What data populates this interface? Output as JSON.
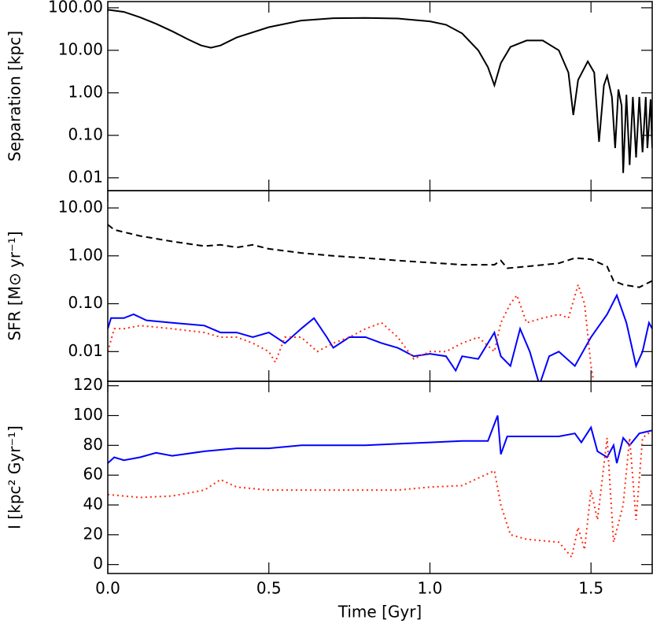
{
  "chart_data": [
    {
      "type": "line",
      "ylabel": "Separation [kpc]",
      "log": true,
      "xlim": [
        0,
        1.69
      ],
      "ylim": [
        0.005,
        140
      ],
      "yticks": [
        {
          "value": 100,
          "label": "100.00"
        },
        {
          "value": 10,
          "label": "10.00"
        },
        {
          "value": 1,
          "label": "1.00"
        },
        {
          "value": 0.1,
          "label": "0.10"
        },
        {
          "value": 0.01,
          "label": "0.01"
        }
      ],
      "series": [
        {
          "color": "#000000",
          "dash": "solid",
          "x": [
            0,
            0.05,
            0.1,
            0.15,
            0.2,
            0.25,
            0.29,
            0.32,
            0.35,
            0.4,
            0.5,
            0.6,
            0.7,
            0.8,
            0.9,
            1.0,
            1.05,
            1.1,
            1.15,
            1.18,
            1.2,
            1.22,
            1.25,
            1.3,
            1.35,
            1.4,
            1.43,
            1.445,
            1.46,
            1.49,
            1.51,
            1.525,
            1.54,
            1.55,
            1.565,
            1.575,
            1.585,
            1.595,
            1.6,
            1.61,
            1.62,
            1.63,
            1.64,
            1.65,
            1.66,
            1.67,
            1.675,
            1.685,
            1.69
          ],
          "values": [
            90,
            80,
            60,
            42,
            28,
            18,
            13,
            11.5,
            13,
            20,
            35,
            50,
            57,
            58,
            56,
            48,
            40,
            25,
            10,
            4,
            1.5,
            5,
            12,
            17,
            17,
            10,
            3,
            0.3,
            2,
            5.5,
            3,
            0.07,
            1.5,
            2.5,
            0.8,
            0.05,
            1.2,
            0.5,
            0.013,
            0.9,
            0.02,
            0.8,
            0.03,
            0.8,
            0.04,
            0.8,
            0.05,
            0.7,
            0.05
          ]
        }
      ]
    },
    {
      "type": "line",
      "ylabel": "SFR [M⊙ yr⁻¹]",
      "log": true,
      "xlim": [
        0,
        1.69
      ],
      "ylim": [
        0.0024,
        23
      ],
      "yticks": [
        {
          "value": 10,
          "label": "10.00"
        },
        {
          "value": 1,
          "label": "1.00"
        },
        {
          "value": 0.1,
          "label": "0.10"
        },
        {
          "value": 0.01,
          "label": "0.01"
        }
      ],
      "series": [
        {
          "color": "#000000",
          "dash": "dashed",
          "x": [
            0,
            0.02,
            0.1,
            0.2,
            0.3,
            0.35,
            0.4,
            0.45,
            0.5,
            0.6,
            0.7,
            0.8,
            0.9,
            1.0,
            1.1,
            1.2,
            1.22,
            1.24,
            1.3,
            1.4,
            1.45,
            1.5,
            1.55,
            1.57,
            1.6,
            1.65,
            1.69
          ],
          "values": [
            4.5,
            3.5,
            2.6,
            2,
            1.6,
            1.7,
            1.5,
            1.7,
            1.4,
            1.15,
            1.0,
            0.9,
            0.8,
            0.72,
            0.65,
            0.65,
            0.8,
            0.55,
            0.6,
            0.7,
            0.9,
            0.85,
            0.6,
            0.3,
            0.25,
            0.22,
            0.3
          ]
        },
        {
          "color": "#0000ff",
          "dash": "solid",
          "x": [
            0,
            0.01,
            0.05,
            0.08,
            0.12,
            0.2,
            0.3,
            0.35,
            0.4,
            0.45,
            0.5,
            0.55,
            0.6,
            0.64,
            0.68,
            0.7,
            0.75,
            0.8,
            0.85,
            0.9,
            0.95,
            1.0,
            1.05,
            1.08,
            1.1,
            1.15,
            1.2,
            1.22,
            1.25,
            1.28,
            1.31,
            1.34,
            1.37,
            1.4,
            1.45,
            1.5,
            1.55,
            1.58,
            1.61,
            1.64,
            1.66,
            1.68,
            1.69
          ],
          "values": [
            0.03,
            0.05,
            0.05,
            0.06,
            0.045,
            0.04,
            0.035,
            0.025,
            0.025,
            0.02,
            0.025,
            0.015,
            0.03,
            0.05,
            0.02,
            0.012,
            0.02,
            0.02,
            0.015,
            0.012,
            0.008,
            0.009,
            0.008,
            0.004,
            0.008,
            0.007,
            0.025,
            0.008,
            0.005,
            0.03,
            0.01,
            0.002,
            0.008,
            0.01,
            0.005,
            0.02,
            0.06,
            0.15,
            0.04,
            0.005,
            0.01,
            0.04,
            0.03
          ]
        },
        {
          "color": "#ff2a10",
          "dash": "dotted",
          "x": [
            0,
            0.02,
            0.05,
            0.1,
            0.2,
            0.3,
            0.35,
            0.4,
            0.45,
            0.5,
            0.52,
            0.55,
            0.6,
            0.65,
            0.7,
            0.75,
            0.8,
            0.85,
            0.9,
            0.95,
            1.0,
            1.05,
            1.1,
            1.15,
            1.2,
            1.22,
            1.25,
            1.27,
            1.3,
            1.35,
            1.4,
            1.43,
            1.46,
            1.48,
            1.5,
            1.51
          ],
          "values": [
            0.01,
            0.03,
            0.03,
            0.035,
            0.03,
            0.025,
            0.02,
            0.02,
            0.015,
            0.01,
            0.006,
            0.02,
            0.02,
            0.01,
            0.015,
            0.02,
            0.03,
            0.04,
            0.02,
            0.007,
            0.01,
            0.01,
            0.015,
            0.02,
            0.01,
            0.04,
            0.1,
            0.15,
            0.04,
            0.05,
            0.06,
            0.05,
            0.25,
            0.1,
            0.005,
            0.002
          ]
        }
      ]
    },
    {
      "type": "line",
      "ylabel": "I [kpc² Gyr⁻¹]",
      "xlabel": "Time [Gyr]",
      "log": false,
      "xlim": [
        0,
        1.69
      ],
      "ylim": [
        -6,
        123
      ],
      "xticks": [
        {
          "value": 0,
          "label": "0.0"
        },
        {
          "value": 0.5,
          "label": "0.5"
        },
        {
          "value": 1,
          "label": "1.0"
        },
        {
          "value": 1.5,
          "label": "1.5"
        }
      ],
      "yticks": [
        0,
        20,
        40,
        60,
        80,
        100,
        120
      ],
      "series": [
        {
          "color": "#0000ff",
          "dash": "solid",
          "x": [
            0,
            0.02,
            0.05,
            0.1,
            0.15,
            0.2,
            0.3,
            0.4,
            0.5,
            0.6,
            0.7,
            0.8,
            0.9,
            1.0,
            1.1,
            1.18,
            1.21,
            1.22,
            1.24,
            1.3,
            1.4,
            1.45,
            1.47,
            1.5,
            1.52,
            1.55,
            1.57,
            1.58,
            1.6,
            1.62,
            1.65,
            1.69
          ],
          "values": [
            68,
            72,
            70,
            72,
            75,
            73,
            76,
            78,
            78,
            80,
            80,
            80,
            81,
            82,
            83,
            83,
            100,
            74,
            86,
            86,
            86,
            88,
            82,
            92,
            76,
            72,
            80,
            68,
            85,
            80,
            88,
            90
          ]
        },
        {
          "color": "#ff2a10",
          "dash": "dotted",
          "x": [
            0,
            0.1,
            0.2,
            0.3,
            0.35,
            0.4,
            0.5,
            0.7,
            0.9,
            1.0,
            1.1,
            1.2,
            1.22,
            1.25,
            1.3,
            1.4,
            1.44,
            1.46,
            1.48,
            1.5,
            1.52,
            1.55,
            1.57,
            1.6,
            1.62,
            1.64,
            1.66,
            1.69
          ],
          "values": [
            47,
            45,
            46,
            50,
            57,
            52,
            50,
            50,
            50,
            52,
            53,
            63,
            40,
            20,
            17,
            15,
            5,
            25,
            10,
            50,
            30,
            85,
            15,
            40,
            85,
            30,
            85,
            90
          ]
        }
      ]
    }
  ]
}
